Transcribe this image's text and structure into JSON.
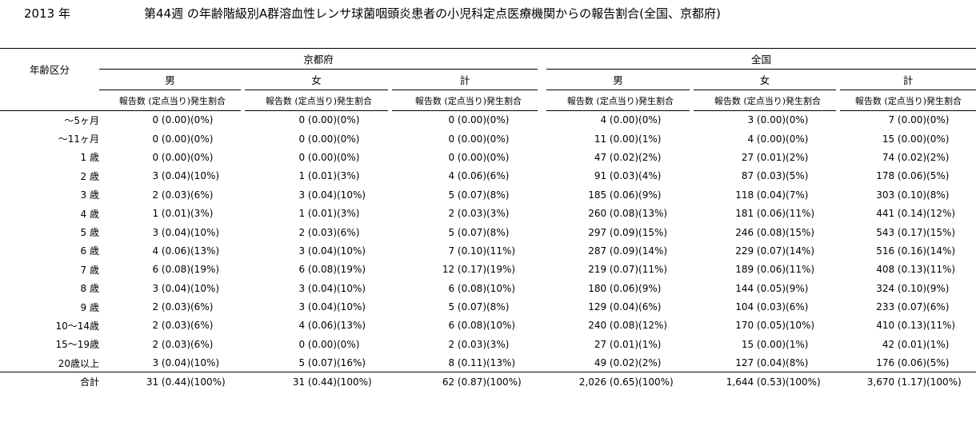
{
  "year": "2013 年",
  "title": "第44週 の年齢階級別A群溶血性レンサ球菌咽頭炎患者の小児科定点医療機関からの報告割合(全国、京都府)",
  "header": {
    "age_label": "年齢区分",
    "regions": [
      "京都府",
      "全国"
    ],
    "sexes": [
      "男",
      "女",
      "計"
    ],
    "col_count": "報告数 (定点当り)",
    "col_pct": "発生割合"
  },
  "rows": [
    {
      "age": "〜5ヶ月",
      "cells": [
        [
          "0 (0.00)",
          "(0%)"
        ],
        [
          "0 (0.00)",
          "(0%)"
        ],
        [
          "0 (0.00)",
          "(0%)"
        ],
        [
          "4 (0.00)",
          "(0%)"
        ],
        [
          "3 (0.00)",
          "(0%)"
        ],
        [
          "7 (0.00)",
          "(0%)"
        ]
      ]
    },
    {
      "age": "〜11ヶ月",
      "cells": [
        [
          "0 (0.00)",
          "(0%)"
        ],
        [
          "0 (0.00)",
          "(0%)"
        ],
        [
          "0 (0.00)",
          "(0%)"
        ],
        [
          "11 (0.00)",
          "(1%)"
        ],
        [
          "4 (0.00)",
          "(0%)"
        ],
        [
          "15 (0.00)",
          "(0%)"
        ]
      ]
    },
    {
      "age": "1 歳",
      "cells": [
        [
          "0 (0.00)",
          "(0%)"
        ],
        [
          "0 (0.00)",
          "(0%)"
        ],
        [
          "0 (0.00)",
          "(0%)"
        ],
        [
          "47 (0.02)",
          "(2%)"
        ],
        [
          "27 (0.01)",
          "(2%)"
        ],
        [
          "74 (0.02)",
          "(2%)"
        ]
      ]
    },
    {
      "age": "2 歳",
      "cells": [
        [
          "3 (0.04)",
          "(10%)"
        ],
        [
          "1 (0.01)",
          "(3%)"
        ],
        [
          "4 (0.06)",
          "(6%)"
        ],
        [
          "91 (0.03)",
          "(4%)"
        ],
        [
          "87 (0.03)",
          "(5%)"
        ],
        [
          "178 (0.06)",
          "(5%)"
        ]
      ]
    },
    {
      "age": "3 歳",
      "cells": [
        [
          "2 (0.03)",
          "(6%)"
        ],
        [
          "3 (0.04)",
          "(10%)"
        ],
        [
          "5 (0.07)",
          "(8%)"
        ],
        [
          "185 (0.06)",
          "(9%)"
        ],
        [
          "118 (0.04)",
          "(7%)"
        ],
        [
          "303 (0.10)",
          "(8%)"
        ]
      ]
    },
    {
      "age": "4 歳",
      "cells": [
        [
          "1 (0.01)",
          "(3%)"
        ],
        [
          "1 (0.01)",
          "(3%)"
        ],
        [
          "2 (0.03)",
          "(3%)"
        ],
        [
          "260 (0.08)",
          "(13%)"
        ],
        [
          "181 (0.06)",
          "(11%)"
        ],
        [
          "441 (0.14)",
          "(12%)"
        ]
      ]
    },
    {
      "age": "5 歳",
      "cells": [
        [
          "3 (0.04)",
          "(10%)"
        ],
        [
          "2 (0.03)",
          "(6%)"
        ],
        [
          "5 (0.07)",
          "(8%)"
        ],
        [
          "297 (0.09)",
          "(15%)"
        ],
        [
          "246 (0.08)",
          "(15%)"
        ],
        [
          "543 (0.17)",
          "(15%)"
        ]
      ]
    },
    {
      "age": "6 歳",
      "cells": [
        [
          "4 (0.06)",
          "(13%)"
        ],
        [
          "3 (0.04)",
          "(10%)"
        ],
        [
          "7 (0.10)",
          "(11%)"
        ],
        [
          "287 (0.09)",
          "(14%)"
        ],
        [
          "229 (0.07)",
          "(14%)"
        ],
        [
          "516 (0.16)",
          "(14%)"
        ]
      ]
    },
    {
      "age": "7 歳",
      "cells": [
        [
          "6 (0.08)",
          "(19%)"
        ],
        [
          "6 (0.08)",
          "(19%)"
        ],
        [
          "12 (0.17)",
          "(19%)"
        ],
        [
          "219 (0.07)",
          "(11%)"
        ],
        [
          "189 (0.06)",
          "(11%)"
        ],
        [
          "408 (0.13)",
          "(11%)"
        ]
      ]
    },
    {
      "age": "8 歳",
      "cells": [
        [
          "3 (0.04)",
          "(10%)"
        ],
        [
          "3 (0.04)",
          "(10%)"
        ],
        [
          "6 (0.08)",
          "(10%)"
        ],
        [
          "180 (0.06)",
          "(9%)"
        ],
        [
          "144 (0.05)",
          "(9%)"
        ],
        [
          "324 (0.10)",
          "(9%)"
        ]
      ]
    },
    {
      "age": "9 歳",
      "cells": [
        [
          "2 (0.03)",
          "(6%)"
        ],
        [
          "3 (0.04)",
          "(10%)"
        ],
        [
          "5 (0.07)",
          "(8%)"
        ],
        [
          "129 (0.04)",
          "(6%)"
        ],
        [
          "104 (0.03)",
          "(6%)"
        ],
        [
          "233 (0.07)",
          "(6%)"
        ]
      ]
    },
    {
      "age": "10〜14歳",
      "cells": [
        [
          "2 (0.03)",
          "(6%)"
        ],
        [
          "4 (0.06)",
          "(13%)"
        ],
        [
          "6 (0.08)",
          "(10%)"
        ],
        [
          "240 (0.08)",
          "(12%)"
        ],
        [
          "170 (0.05)",
          "(10%)"
        ],
        [
          "410 (0.13)",
          "(11%)"
        ]
      ]
    },
    {
      "age": "15〜19歳",
      "cells": [
        [
          "2 (0.03)",
          "(6%)"
        ],
        [
          "0 (0.00)",
          "(0%)"
        ],
        [
          "2 (0.03)",
          "(3%)"
        ],
        [
          "27 (0.01)",
          "(1%)"
        ],
        [
          "15 (0.00)",
          "(1%)"
        ],
        [
          "42 (0.01)",
          "(1%)"
        ]
      ]
    },
    {
      "age": "20歳以上",
      "cells": [
        [
          "3 (0.04)",
          "(10%)"
        ],
        [
          "5 (0.07)",
          "(16%)"
        ],
        [
          "8 (0.11)",
          "(13%)"
        ],
        [
          "49 (0.02)",
          "(2%)"
        ],
        [
          "127 (0.04)",
          "(8%)"
        ],
        [
          "176 (0.06)",
          "(5%)"
        ]
      ]
    }
  ],
  "total": {
    "age": "合計",
    "cells": [
      [
        "31 (0.44)",
        "(100%)"
      ],
      [
        "31 (0.44)",
        "(100%)"
      ],
      [
        "62 (0.87)",
        "(100%)"
      ],
      [
        "2,026 (0.65)",
        "(100%)"
      ],
      [
        "1,644 (0.53)",
        "(100%)"
      ],
      [
        "3,670 (1.17)",
        "(100%)"
      ]
    ]
  }
}
